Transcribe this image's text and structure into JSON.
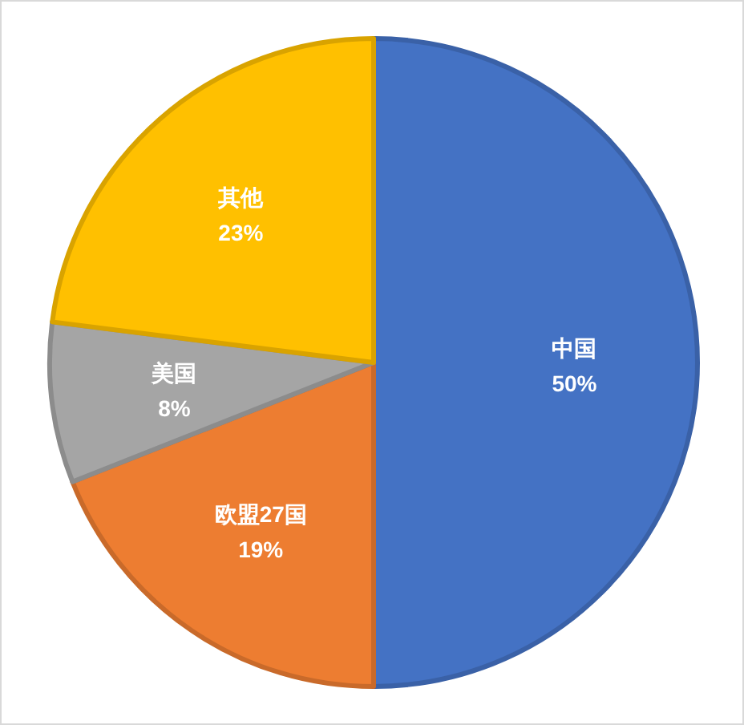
{
  "chart_data": {
    "type": "pie",
    "categories": [
      "中国",
      "欧盟27国",
      "美国",
      "其他"
    ],
    "values": [
      50,
      19,
      8,
      23
    ],
    "colors": [
      "#4472c4",
      "#ed7d31",
      "#a5a5a5",
      "#ffc000"
    ],
    "value_labels": [
      "50%",
      "19%",
      "8%",
      "23%"
    ]
  }
}
